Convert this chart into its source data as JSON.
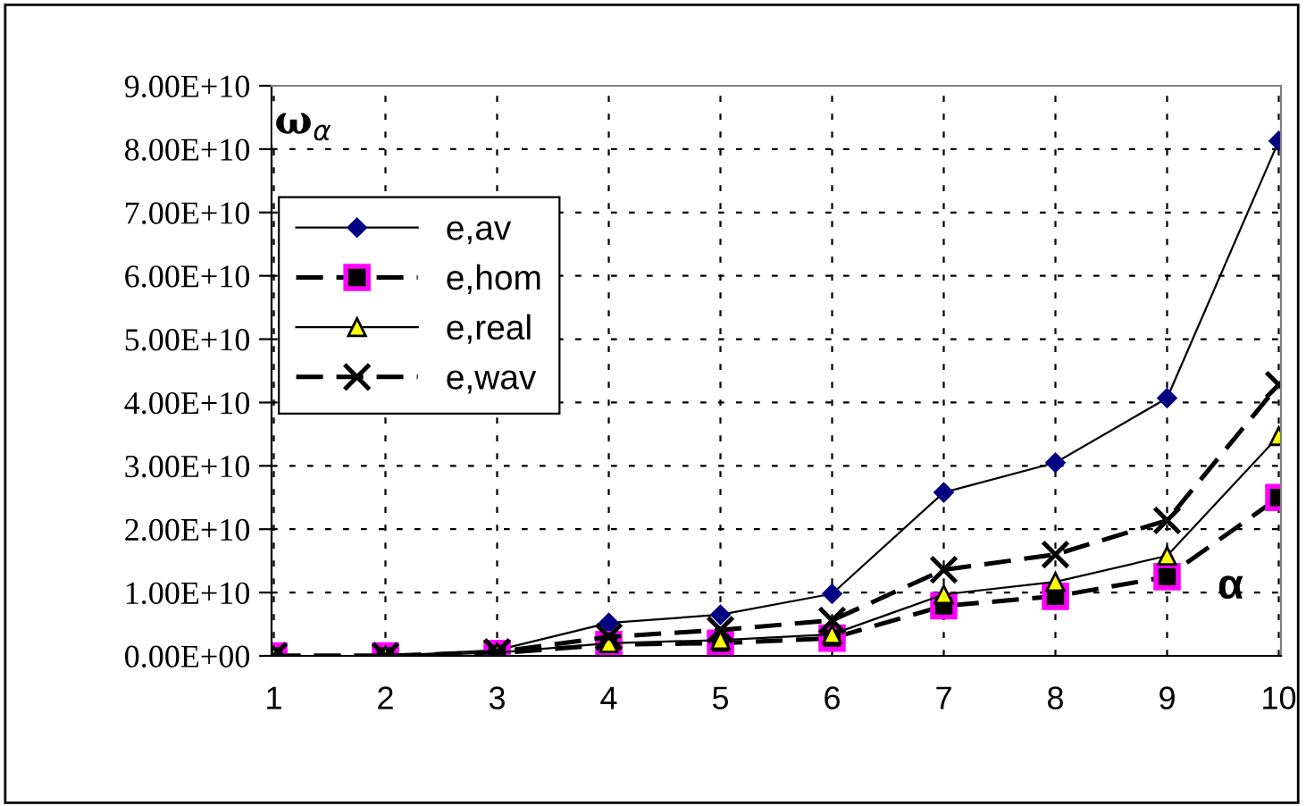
{
  "chart_data": {
    "type": "line",
    "xlabel": "α",
    "ylabel": "ω$_{α}$",
    "categories": [
      "1",
      "2",
      "3",
      "4",
      "5",
      "6",
      "7",
      "8",
      "9",
      "10"
    ],
    "ylim": [
      0,
      90000000000
    ],
    "yticks": [
      {
        "value": 0,
        "label": "0.00E+00"
      },
      {
        "value": 10000000000,
        "label": "1.00E+10"
      },
      {
        "value": 20000000000,
        "label": "2.00E+10"
      },
      {
        "value": 30000000000,
        "label": "3.00E+10"
      },
      {
        "value": 40000000000,
        "label": "4.00E+10"
      },
      {
        "value": 50000000000,
        "label": "5.00E+10"
      },
      {
        "value": 60000000000,
        "label": "6.00E+10"
      },
      {
        "value": 70000000000,
        "label": "7.00E+10"
      },
      {
        "value": 80000000000,
        "label": "8.00E+10"
      },
      {
        "value": 90000000000,
        "label": "9.00E+10"
      }
    ],
    "grid": true,
    "legend": "top left",
    "series": [
      {
        "name": "e,av",
        "color": "#000080",
        "marker": "diamond",
        "line_style": "solid",
        "values": [
          0,
          0,
          900000000,
          5200000000,
          6500000000,
          9800000000,
          25800000000,
          30500000000,
          40700000000,
          81300000000
        ]
      },
      {
        "name": "e,hom",
        "color": "#ff00ff",
        "marker": "square",
        "line_style": "dashed",
        "values": [
          0,
          0,
          400000000,
          1800000000,
          2000000000,
          2800000000,
          7900000000,
          9400000000,
          12500000000,
          25000000000
        ]
      },
      {
        "name": "e,real",
        "color": "#ffff00",
        "marker": "triangle",
        "line_style": "solid",
        "values": [
          0,
          0,
          500000000,
          2000000000,
          2500000000,
          3400000000,
          9700000000,
          11700000000,
          15800000000,
          34700000000
        ]
      },
      {
        "name": "e,wav",
        "color": "#000000",
        "marker": "cross",
        "line_style": "dashed",
        "values": [
          0,
          0,
          600000000,
          3000000000,
          4100000000,
          5600000000,
          13600000000,
          16000000000,
          21400000000,
          42800000000
        ]
      }
    ]
  }
}
